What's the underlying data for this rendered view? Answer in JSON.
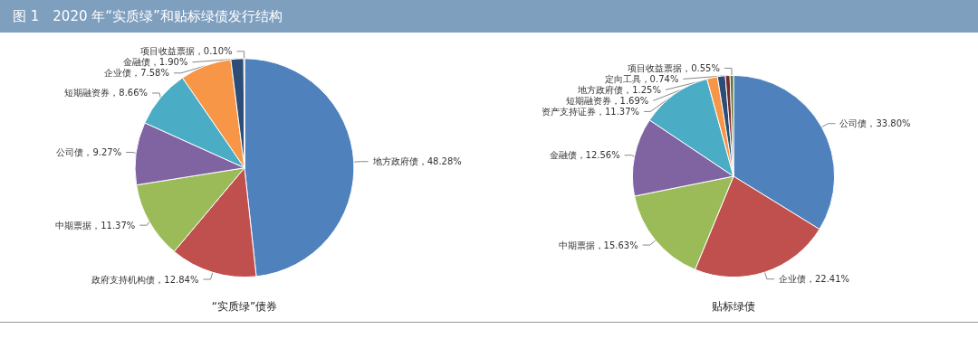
{
  "chart_data": [
    {
      "type": "pie",
      "title": "图 1　2020 年“实质绿”和贴标绿债发行结构",
      "subtitle": "“实质绿”债券",
      "categories": [
        "地方政府债",
        "政府支持机构债",
        "中期票据",
        "公司债",
        "短期融资券",
        "企业债",
        "金融债",
        "项目收益票据"
      ],
      "values": [
        48.28,
        12.84,
        11.37,
        9.27,
        8.66,
        7.58,
        1.9,
        0.1
      ],
      "value_labels": [
        "，48.28%",
        "，12.84%",
        "，11.37%",
        "，9.27%",
        "，8.66%",
        "，7.58%",
        "，1.90%",
        "，0.10%"
      ],
      "colors": [
        "#4f81bd",
        "#c0504d",
        "#9bbb59",
        "#8064a2",
        "#4bacc6",
        "#f79646",
        "#2c4d75",
        "#772c2a"
      ],
      "legend": false
    },
    {
      "type": "pie",
      "subtitle": "贴标绿债",
      "categories": [
        "公司债",
        "企业债",
        "中期票据",
        "金融债",
        "资产支持证券",
        "短期融资券",
        "地方政府债",
        "定向工具",
        "项目收益票据"
      ],
      "values": [
        33.8,
        22.41,
        15.63,
        12.56,
        11.37,
        1.69,
        1.25,
        0.74,
        0.55
      ],
      "value_labels": [
        "，33.80%",
        "，22.41%",
        "，15.63%",
        "，12.56%",
        "，11.37%",
        "，1.69%",
        "，1.25%",
        "，0.74%",
        "，0.55%"
      ],
      "colors": [
        "#4f81bd",
        "#c0504d",
        "#9bbb59",
        "#8064a2",
        "#4bacc6",
        "#f79646",
        "#2c4d75",
        "#772c2a",
        "#5f7530"
      ],
      "legend": false
    }
  ]
}
